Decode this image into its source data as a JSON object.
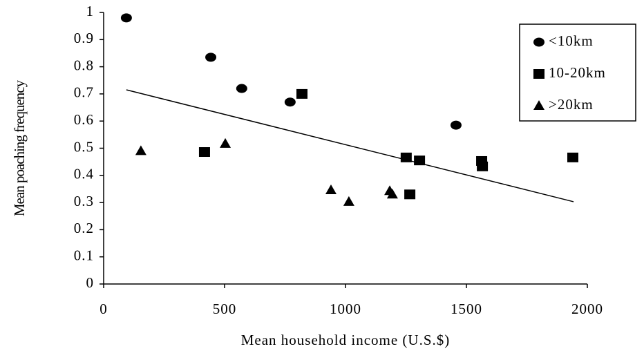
{
  "chart_data": {
    "type": "scatter",
    "xlabel": "Mean household income (U.S.$)",
    "ylabel": "Mean poaching frequency",
    "xlim": [
      0,
      2000
    ],
    "xticks": [
      0,
      500,
      1000,
      1500,
      2000
    ],
    "ylim": [
      0,
      1
    ],
    "yticks": [
      0,
      0.1,
      0.2,
      0.3,
      0.4,
      0.5,
      0.6,
      0.7,
      0.8,
      0.9,
      1
    ],
    "legend": "upper right",
    "series": [
      {
        "name": "<10km",
        "color": "#000000",
        "marker": "circle",
        "x": [
          94,
          443,
          571,
          771,
          1457
        ],
        "values": [
          0.98,
          0.835,
          0.72,
          0.67,
          0.585
        ]
      },
      {
        "name": "10-20km",
        "color": "#000000",
        "marker": "square",
        "x": [
          417,
          820,
          1251,
          1266,
          1306,
          1563,
          1566,
          1940
        ],
        "values": [
          0.486,
          0.7,
          0.466,
          0.33,
          0.455,
          0.453,
          0.433,
          0.466
        ]
      },
      {
        "name": ">20km",
        "color": "#000000",
        "marker": "triangle",
        "x": [
          154,
          503,
          940,
          1014,
          1183,
          1194
        ],
        "values": [
          0.49,
          0.517,
          0.346,
          0.303,
          0.343,
          0.33
        ]
      }
    ],
    "trendline": {
      "color": "#000000",
      "x": [
        94,
        1943
      ],
      "values": [
        0.715,
        0.303
      ]
    }
  }
}
